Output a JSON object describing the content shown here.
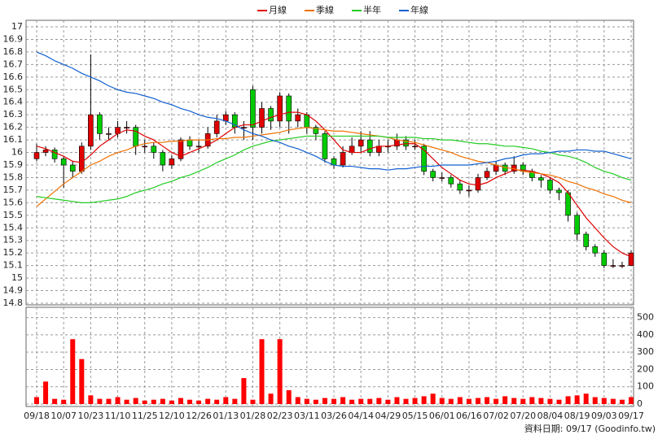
{
  "chart_data": [
    {
      "type": "candlestick",
      "categories": [
        "09/18",
        null,
        null,
        "10/07",
        null,
        null,
        "10/23",
        null,
        null,
        "11/10",
        null,
        null,
        "11/25",
        null,
        null,
        "12/10",
        null,
        null,
        "12/26",
        null,
        null,
        "01/13",
        null,
        null,
        "01/28",
        null,
        null,
        "02/23",
        null,
        null,
        "03/11",
        null,
        null,
        "03/26",
        null,
        null,
        "04/14",
        null,
        null,
        "04/29",
        null,
        null,
        "05/15",
        null,
        null,
        "06/01",
        null,
        null,
        "06/16",
        null,
        null,
        "07/02",
        null,
        null,
        "07/20",
        null,
        null,
        "08/04",
        null,
        null,
        "08/19",
        null,
        null,
        "09/03",
        null,
        null,
        "09/17"
      ],
      "open": [
        15.95,
        16.0,
        16.02,
        15.95,
        15.9,
        15.85,
        16.05,
        16.3,
        16.15,
        16.15,
        16.2,
        16.2,
        16.05,
        16.05,
        16.0,
        15.9,
        15.95,
        16.1,
        16.05,
        16.05,
        16.15,
        16.25,
        16.3,
        16.2,
        16.5,
        16.2,
        16.35,
        16.25,
        16.45,
        16.25,
        16.3,
        16.2,
        16.15,
        15.95,
        15.9,
        16.0,
        16.05,
        16.1,
        16.0,
        16.05,
        16.05,
        16.1,
        16.05,
        16.05,
        15.85,
        15.8,
        15.8,
        15.75,
        15.7,
        15.7,
        15.8,
        15.85,
        15.9,
        15.85,
        15.9,
        15.85,
        15.8,
        15.78,
        15.7,
        15.68,
        15.5,
        15.35,
        15.25,
        15.2,
        15.1,
        15.1,
        15.1
      ],
      "high": [
        16.07,
        16.05,
        16.04,
        15.97,
        15.93,
        16.08,
        16.78,
        16.32,
        16.2,
        16.25,
        16.25,
        16.22,
        16.1,
        16.08,
        16.02,
        15.98,
        16.12,
        16.13,
        16.1,
        16.2,
        16.3,
        16.33,
        16.32,
        16.25,
        16.53,
        16.4,
        16.37,
        16.48,
        16.47,
        16.35,
        16.32,
        16.22,
        16.17,
        15.97,
        16.05,
        16.12,
        16.17,
        16.17,
        16.1,
        16.1,
        16.15,
        16.13,
        16.1,
        16.07,
        15.87,
        15.84,
        15.82,
        15.78,
        15.74,
        15.83,
        15.88,
        15.93,
        15.92,
        15.97,
        15.92,
        15.87,
        15.82,
        15.8,
        15.72,
        15.7,
        15.52,
        15.37,
        15.27,
        15.22,
        15.15,
        15.13,
        15.22
      ],
      "low": [
        15.93,
        15.97,
        15.92,
        15.72,
        15.8,
        15.83,
        16.02,
        16.1,
        16.1,
        16.12,
        16.15,
        15.98,
        16.0,
        15.95,
        15.85,
        15.87,
        15.93,
        16.02,
        16.0,
        16.03,
        16.12,
        16.22,
        16.15,
        16.1,
        16.1,
        16.15,
        16.18,
        16.2,
        16.15,
        16.2,
        16.15,
        16.1,
        15.92,
        15.87,
        15.88,
        15.98,
        16.0,
        15.97,
        15.97,
        16.0,
        16.02,
        16.02,
        16.02,
        15.82,
        15.77,
        15.77,
        15.72,
        15.67,
        15.65,
        15.68,
        15.78,
        15.82,
        15.82,
        15.83,
        15.82,
        15.77,
        15.72,
        15.67,
        15.62,
        15.45,
        15.3,
        15.22,
        15.17,
        15.08,
        15.08,
        15.08,
        15.1
      ],
      "close": [
        16.0,
        16.02,
        15.95,
        15.9,
        15.85,
        16.05,
        16.3,
        16.15,
        16.15,
        16.2,
        16.2,
        16.05,
        16.05,
        16.0,
        15.9,
        15.95,
        16.1,
        16.05,
        16.05,
        16.15,
        16.25,
        16.3,
        16.2,
        16.2,
        16.2,
        16.35,
        16.25,
        16.45,
        16.25,
        16.3,
        16.2,
        16.15,
        15.95,
        15.9,
        16.0,
        16.05,
        16.1,
        16.0,
        16.05,
        16.05,
        16.1,
        16.05,
        16.05,
        15.85,
        15.8,
        15.8,
        15.75,
        15.7,
        15.7,
        15.8,
        15.85,
        15.9,
        15.85,
        15.9,
        15.85,
        15.8,
        15.78,
        15.7,
        15.68,
        15.5,
        15.35,
        15.25,
        15.2,
        15.1,
        15.1,
        15.1,
        15.2
      ],
      "up_color": "#e00000",
      "down_color": "#00cc00",
      "series": [
        {
          "name": "月線",
          "color": "#e00000",
          "values": [
            16.05,
            16.03,
            16.0,
            15.97,
            15.93,
            15.92,
            15.98,
            16.05,
            16.1,
            16.15,
            16.18,
            16.17,
            16.13,
            16.1,
            16.05,
            16.0,
            15.97,
            16.0,
            16.03,
            16.06,
            16.1,
            16.15,
            16.2,
            16.22,
            16.22,
            16.25,
            16.28,
            16.3,
            16.32,
            16.32,
            16.3,
            16.25,
            16.18,
            16.1,
            16.02,
            16.0,
            16.0,
            16.03,
            16.05,
            16.05,
            16.06,
            16.07,
            16.07,
            16.02,
            15.95,
            15.88,
            15.83,
            15.78,
            15.75,
            15.74,
            15.76,
            15.8,
            15.83,
            15.86,
            15.86,
            15.85,
            15.83,
            15.8,
            15.76,
            15.68,
            15.58,
            15.48,
            15.4,
            15.32,
            15.25,
            15.2,
            15.17
          ]
        },
        {
          "name": "季線",
          "color": "#f07000",
          "values": [
            15.57,
            15.63,
            15.69,
            15.75,
            15.8,
            15.85,
            15.9,
            15.93,
            15.97,
            16.0,
            16.02,
            16.05,
            16.07,
            16.08,
            16.08,
            16.09,
            16.09,
            16.1,
            16.1,
            16.1,
            16.11,
            16.11,
            16.12,
            16.12,
            16.13,
            16.14,
            16.15,
            16.16,
            16.18,
            16.19,
            16.2,
            16.19,
            16.18,
            16.17,
            16.17,
            16.16,
            16.15,
            16.14,
            16.13,
            16.12,
            16.1,
            16.09,
            16.08,
            16.06,
            16.04,
            16.02,
            16.0,
            15.97,
            15.95,
            15.93,
            15.92,
            15.9,
            15.88,
            15.87,
            15.85,
            15.84,
            15.83,
            15.82,
            15.8,
            15.77,
            15.75,
            15.72,
            15.7,
            15.67,
            15.65,
            15.62,
            15.6
          ]
        },
        {
          "name": "半年",
          "color": "#22cc22",
          "values": [
            15.65,
            15.64,
            15.63,
            15.62,
            15.61,
            15.6,
            15.6,
            15.61,
            15.62,
            15.63,
            15.65,
            15.68,
            15.7,
            15.72,
            15.75,
            15.77,
            15.8,
            15.82,
            15.85,
            15.88,
            15.92,
            15.95,
            15.98,
            16.02,
            16.05,
            16.07,
            16.09,
            16.1,
            16.11,
            16.12,
            16.13,
            16.13,
            16.13,
            16.13,
            16.13,
            16.13,
            16.13,
            16.13,
            16.13,
            16.12,
            16.12,
            16.12,
            16.12,
            16.11,
            16.11,
            16.1,
            16.1,
            16.09,
            16.08,
            16.07,
            16.07,
            16.06,
            16.05,
            16.05,
            16.04,
            16.03,
            16.01,
            16.0,
            15.98,
            15.97,
            15.95,
            15.92,
            15.88,
            15.85,
            15.83,
            15.8,
            15.78
          ]
        },
        {
          "name": "年線",
          "color": "#1060d0",
          "values": [
            16.8,
            16.77,
            16.73,
            16.7,
            16.67,
            16.63,
            16.6,
            16.57,
            16.53,
            16.5,
            16.48,
            16.47,
            16.45,
            16.43,
            16.4,
            16.38,
            16.35,
            16.33,
            16.3,
            16.28,
            16.27,
            16.25,
            16.22,
            16.18,
            16.15,
            16.13,
            16.1,
            16.08,
            16.05,
            16.03,
            16.0,
            15.97,
            15.93,
            15.9,
            15.89,
            15.89,
            15.88,
            15.87,
            15.87,
            15.86,
            15.87,
            15.87,
            15.88,
            15.89,
            15.89,
            15.9,
            15.9,
            15.9,
            15.9,
            15.91,
            15.92,
            15.93,
            15.95,
            15.96,
            15.98,
            15.99,
            15.99,
            16.0,
            16.01,
            16.01,
            16.02,
            16.02,
            16.01,
            16.01,
            15.99,
            15.97,
            15.95
          ]
        }
      ],
      "ylim": [
        14.8,
        17
      ],
      "yticks": [
        14.8,
        14.9,
        15,
        15.1,
        15.2,
        15.3,
        15.4,
        15.5,
        15.6,
        15.7,
        15.8,
        15.9,
        16,
        16.1,
        16.2,
        16.3,
        16.4,
        16.5,
        16.6,
        16.7,
        16.8,
        16.9,
        17
      ],
      "grid": true,
      "source": "資料日期: 09/17 (Goodinfo.tw)"
    },
    {
      "type": "bar",
      "color": "#ff0000",
      "values": [
        40,
        130,
        30,
        25,
        375,
        260,
        50,
        30,
        30,
        40,
        25,
        35,
        20,
        25,
        30,
        20,
        35,
        25,
        20,
        30,
        25,
        40,
        30,
        150,
        25,
        375,
        60,
        375,
        80,
        40,
        30,
        25,
        35,
        30,
        40,
        25,
        30,
        30,
        35,
        25,
        40,
        30,
        35,
        45,
        60,
        35,
        30,
        40,
        30,
        35,
        40,
        30,
        45,
        35,
        30,
        40,
        35,
        30,
        25,
        45,
        50,
        60,
        40,
        35,
        30,
        25,
        40
      ],
      "ylim": [
        0,
        550
      ],
      "yticks": [
        0,
        100,
        200,
        300,
        400,
        500
      ],
      "grid": true
    }
  ]
}
